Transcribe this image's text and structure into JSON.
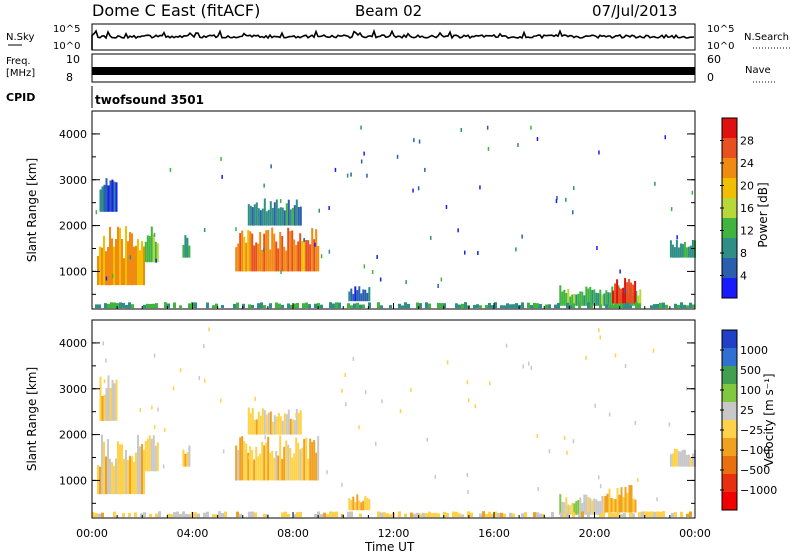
{
  "header": {
    "station": "Dome C East (fitACF)",
    "beam": "Beam 02",
    "date": "07/Jul/2013"
  },
  "top_panels": {
    "nsky_label": "N.Sky",
    "nsky_ticks": [
      "10^5",
      "10^0"
    ],
    "nsearch_label": "N.Search",
    "nsearch_ticks": [
      "10^5",
      "10^0"
    ],
    "freq_label_1": "Freq.",
    "freq_label_2": "[MHz]",
    "freq_ticks": [
      "10",
      "8"
    ],
    "nave_label": "Nave",
    "nave_ticks": [
      "60",
      "0"
    ],
    "cpid_label": "CPID",
    "cpid_text": "twofsound 3501"
  },
  "x_axis": {
    "ticks": [
      "00:00",
      "04:00",
      "08:00",
      "12:00",
      "16:00",
      "20:00",
      "00:00"
    ],
    "label": "Time UT"
  },
  "colors": {
    "power_scale": [
      "#1a1aff",
      "#2a5fb0",
      "#2f8f86",
      "#3fb53f",
      "#b8d83a",
      "#f0c000",
      "#f08a10",
      "#e85020",
      "#e01010"
    ],
    "velocity_scale": [
      "#2040c8",
      "#3070d0",
      "#40a050",
      "#80c840",
      "#c8c8c8",
      "#ffd24a",
      "#f2a020",
      "#e87010",
      "#e83010",
      "#f20000"
    ]
  },
  "chart_data": [
    {
      "type": "heatmap",
      "panel": "power",
      "ylabel": "Slant Range [km]",
      "yticks": [
        "4000",
        "3000",
        "2000",
        "1000"
      ],
      "ylim": [
        180,
        4500
      ],
      "xlim_hours": [
        0,
        24
      ],
      "colorbar_label": "Power [dB]",
      "colorbar_ticks": [
        "28",
        "24",
        "20",
        "16",
        "12",
        "8",
        "4"
      ],
      "colorbar_range": [
        0,
        32
      ],
      "regions": [
        {
          "t0": 0.2,
          "t1": 2.1,
          "r0": 700,
          "r1": 2000,
          "v": 22
        },
        {
          "t0": 0.3,
          "t1": 1.0,
          "r0": 2300,
          "r1": 3300,
          "v": 6
        },
        {
          "t0": 2.1,
          "t1": 2.6,
          "r0": 1200,
          "r1": 2000,
          "v": 14
        },
        {
          "t0": 3.6,
          "t1": 3.9,
          "r0": 1300,
          "r1": 1800,
          "v": 12
        },
        {
          "t0": 5.7,
          "t1": 9.0,
          "r0": 1000,
          "r1": 2000,
          "v": 24
        },
        {
          "t0": 6.2,
          "t1": 8.3,
          "r0": 2000,
          "r1": 2600,
          "v": 8
        },
        {
          "t0": 10.2,
          "t1": 11.0,
          "r0": 350,
          "r1": 700,
          "v": 6
        },
        {
          "t0": 18.6,
          "t1": 21.8,
          "r0": 250,
          "r1": 700,
          "v": 12
        },
        {
          "t0": 20.7,
          "t1": 21.6,
          "r0": 300,
          "r1": 900,
          "v": 28
        },
        {
          "t0": 23.0,
          "t1": 24.0,
          "r0": 1300,
          "r1": 1700,
          "v": 10
        },
        {
          "t0": 0.0,
          "t1": 24.0,
          "r0": 200,
          "r1": 330,
          "v": 10
        }
      ]
    },
    {
      "type": "heatmap",
      "panel": "velocity",
      "ylabel": "Slant Range [km]",
      "yticks": [
        "4000",
        "3000",
        "2000",
        "1000"
      ],
      "ylim": [
        180,
        4500
      ],
      "xlim_hours": [
        0,
        24
      ],
      "colorbar_label": "Velocity [m s⁻¹]",
      "colorbar_ticks": [
        "1000",
        "500",
        "100",
        "25",
        "−25",
        "−100",
        "−500",
        "−1000"
      ],
      "colorbar_range": [
        -1200,
        1200
      ],
      "regions": [
        {
          "t0": 0.2,
          "t1": 2.1,
          "r0": 700,
          "r1": 2000,
          "v": -120
        },
        {
          "t0": 0.3,
          "t1": 1.0,
          "r0": 2300,
          "r1": 3300,
          "v": -80
        },
        {
          "t0": 2.1,
          "t1": 2.6,
          "r0": 1200,
          "r1": 2000,
          "v": -100
        },
        {
          "t0": 3.6,
          "t1": 3.9,
          "r0": 1300,
          "r1": 1800,
          "v": -100
        },
        {
          "t0": 5.7,
          "t1": 9.0,
          "r0": 1000,
          "r1": 2000,
          "v": -150
        },
        {
          "t0": 6.2,
          "t1": 8.3,
          "r0": 2000,
          "r1": 2600,
          "v": -90
        },
        {
          "t0": 10.2,
          "t1": 11.0,
          "r0": 350,
          "r1": 700,
          "v": -200
        },
        {
          "t0": 18.6,
          "t1": 20.4,
          "r0": 250,
          "r1": 700,
          "v": 150
        },
        {
          "t0": 20.4,
          "t1": 21.6,
          "r0": 300,
          "r1": 900,
          "v": -200
        },
        {
          "t0": 23.0,
          "t1": 24.0,
          "r0": 1300,
          "r1": 1700,
          "v": 40
        },
        {
          "t0": 0.0,
          "t1": 24.0,
          "r0": 200,
          "r1": 330,
          "v": -60
        }
      ]
    }
  ]
}
